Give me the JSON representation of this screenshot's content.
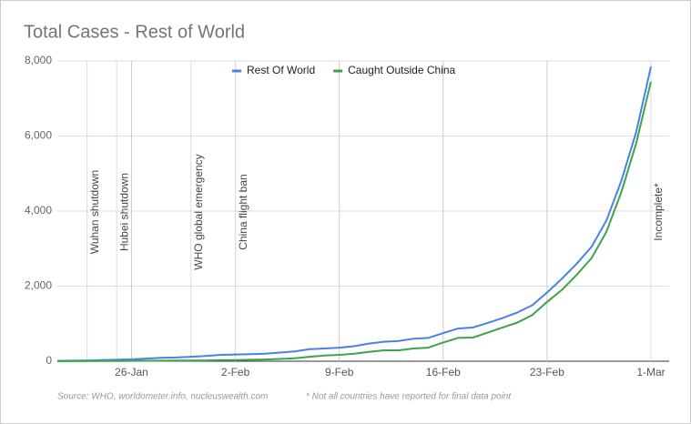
{
  "chart_data": {
    "type": "line",
    "title": "Total Cases - Rest of World",
    "categories": [
      null,
      null,
      null,
      null,
      null,
      "26-Jan",
      null,
      null,
      null,
      null,
      null,
      null,
      "2-Feb",
      null,
      null,
      null,
      null,
      null,
      null,
      "9-Feb",
      null,
      null,
      null,
      null,
      null,
      null,
      "16-Feb",
      null,
      null,
      null,
      null,
      null,
      null,
      "23-Feb",
      null,
      null,
      null,
      null,
      null,
      null,
      "1-Mar"
    ],
    "series": [
      {
        "name": "Rest Of World",
        "color": "#4a80e8",
        "values": [
          10,
          15,
          20,
          30,
          40,
          50,
          70,
          90,
          100,
          120,
          140,
          170,
          180,
          190,
          200,
          230,
          260,
          320,
          340,
          360,
          400,
          470,
          520,
          540,
          600,
          620,
          750,
          870,
          900,
          1020,
          1150,
          1300,
          1490,
          1830,
          2200,
          2600,
          3050,
          3750,
          4800,
          6100,
          7850
        ]
      },
      {
        "name": "Caught Outside China",
        "color": "#3ca34f",
        "values": [
          0,
          2,
          3,
          5,
          8,
          10,
          12,
          14,
          17,
          20,
          23,
          28,
          32,
          38,
          45,
          60,
          80,
          120,
          150,
          170,
          200,
          250,
          290,
          290,
          340,
          360,
          500,
          620,
          630,
          760,
          900,
          1030,
          1230,
          1580,
          1900,
          2300,
          2750,
          3450,
          4500,
          5800,
          7450
        ]
      }
    ],
    "ylim": [
      0,
      8000
    ],
    "yticks": [
      0,
      {
        "value": 2000,
        "label": "2,000"
      },
      {
        "value": 4000,
        "label": "4,000"
      },
      {
        "value": 6000,
        "label": "6,000"
      },
      {
        "value": 8000,
        "label": "8,000"
      }
    ],
    "grid": true,
    "legend": "top",
    "annotations": [
      {
        "label": "Wuhan shutdown",
        "x": 2
      },
      {
        "label": "Hubei shutdown",
        "x": 4
      },
      {
        "label": "WHO global emergency",
        "x": 9
      },
      {
        "label": "China flight ban",
        "x": 12
      },
      {
        "label": "Incomplete*",
        "x": 40
      }
    ],
    "footnotes": [
      "Source: WHO, worldometer.info, nucleuswealth.com",
      "* Not all countries have reported for final data point"
    ]
  }
}
